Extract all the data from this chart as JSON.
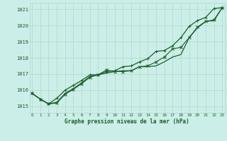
{
  "title": "Graphe pression niveau de la mer (hPa)",
  "background_color": "#cceee8",
  "grid_color": "#b0d8cc",
  "line_color": "#1a5c2a",
  "x_ticks": [
    0,
    1,
    2,
    3,
    4,
    5,
    6,
    7,
    8,
    9,
    10,
    11,
    12,
    13,
    14,
    15,
    16,
    17,
    18,
    19,
    20,
    21,
    22,
    23
  ],
  "ylim": [
    1014.6,
    1021.4
  ],
  "yticks": [
    1015,
    1016,
    1017,
    1018,
    1019,
    1020,
    1021
  ],
  "xlim": [
    -0.3,
    23.3
  ],
  "series": [
    {
      "y": [
        1015.8,
        1015.45,
        1015.15,
        1015.25,
        1015.8,
        1016.1,
        1016.45,
        1016.85,
        1016.95,
        1017.05,
        1017.15,
        1017.2,
        1017.2,
        1017.45,
        1017.45,
        1017.5,
        1017.75,
        1018.05,
        1018.2,
        1019.25,
        1019.85,
        1020.25,
        1020.3,
        1021.1
      ],
      "marker": null,
      "linewidth": 0.9
    },
    {
      "y": [
        1015.8,
        1015.45,
        1015.15,
        1015.2,
        1015.75,
        1016.05,
        1016.4,
        1016.8,
        1016.95,
        1017.25,
        1017.15,
        1017.15,
        1017.2,
        1017.45,
        1017.5,
        1017.75,
        1018.05,
        1018.55,
        1018.65,
        1019.25,
        1019.9,
        1020.25,
        1020.35,
        1021.1
      ],
      "marker": "x",
      "linewidth": 0.8
    },
    {
      "y": [
        1015.8,
        1015.45,
        1015.15,
        1015.5,
        1016.0,
        1016.3,
        1016.6,
        1016.95,
        1016.95,
        1017.15,
        1017.2,
        1017.45,
        1017.5,
        1017.75,
        1017.95,
        1018.4,
        1018.45,
        1018.75,
        1019.25,
        1019.95,
        1020.3,
        1020.5,
        1021.05,
        1021.1
      ],
      "marker": "+",
      "linewidth": 0.9
    }
  ]
}
